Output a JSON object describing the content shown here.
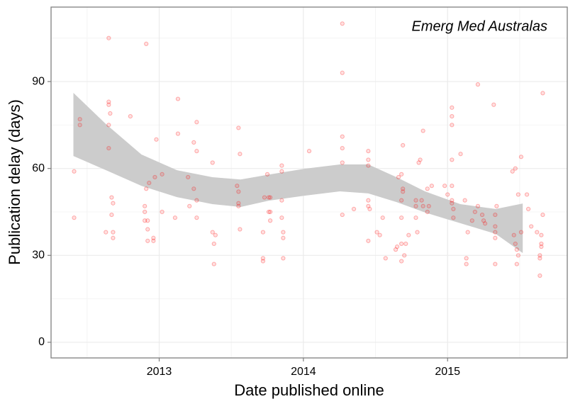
{
  "chart_data": {
    "type": "scatter",
    "annotation": "Emerg Med Australas",
    "xlabel": "Date published online",
    "ylabel": "Publication delay (days)",
    "xlim": [
      2012.25,
      2015.83
    ],
    "ylim": [
      -5.4,
      115.7
    ],
    "xticks": [
      2013,
      2014,
      2015
    ],
    "yticks": [
      0,
      30,
      60,
      90
    ],
    "grid": true,
    "color": "#ff0000",
    "x": [
      2012.41,
      2012.41,
      2012.45,
      2012.45,
      2012.65,
      2012.65,
      2012.65,
      2012.65,
      2012.65,
      2012.66,
      2012.63,
      2012.67,
      2012.68,
      2012.67,
      2012.68,
      2012.68,
      2012.8,
      2012.91,
      2012.91,
      2012.93,
      2012.9,
      2012.9,
      2012.9,
      2012.92,
      2012.92,
      2012.92,
      2012.96,
      2012.96,
      2012.97,
      2012.98,
      2013.02,
      2013.02,
      2013.13,
      2013.13,
      2013.11,
      2013.2,
      2013.21,
      2013.24,
      2013.26,
      2013.24,
      2013.26,
      2013.26,
      2013.26,
      2013.37,
      2013.37,
      2013.39,
      2013.38,
      2013.38,
      2013.55,
      2013.56,
      2013.54,
      2013.55,
      2013.55,
      2013.55,
      2013.56,
      2013.72,
      2013.72,
      2013.72,
      2013.75,
      2013.73,
      2013.76,
      2013.76,
      2013.77,
      2013.77,
      2013.77,
      2013.85,
      2013.85,
      2013.85,
      2013.85,
      2013.86,
      2013.86,
      2013.86,
      2014.04,
      2014.27,
      2014.27,
      2014.27,
      2014.27,
      2014.27,
      2014.27,
      2014.35,
      2014.45,
      2014.45,
      2014.45,
      2014.45,
      2014.45,
      2014.45,
      2014.46,
      2014.51,
      2014.53,
      2014.55,
      2014.57,
      2014.64,
      2014.65,
      2014.66,
      2014.68,
      2014.68,
      2014.68,
      2014.68,
      2014.69,
      2014.69,
      2014.69,
      2014.71,
      2014.7,
      2014.68,
      2014.73,
      2014.78,
      2014.78,
      2014.78,
      2014.79,
      2014.8,
      2014.81,
      2014.82,
      2014.83,
      2014.83,
      2014.86,
      2014.86,
      2014.87,
      2014.89,
      2014.98,
      2015.0,
      2015.03,
      2015.03,
      2015.03,
      2015.03,
      2015.03,
      2015.03,
      2015.03,
      2015.04,
      2015.04,
      2015.09,
      2015.12,
      2015.13,
      2015.13,
      2015.14,
      2015.17,
      2015.19,
      2015.21,
      2015.21,
      2015.24,
      2015.25,
      2015.26,
      2015.32,
      2015.33,
      2015.33,
      2015.33,
      2015.33,
      2015.33,
      2015.34,
      2015.45,
      2015.47,
      2015.46,
      2015.47,
      2015.48,
      2015.48,
      2015.49,
      2015.49,
      2015.51,
      2015.51,
      2015.55,
      2015.56,
      2015.58,
      2015.62,
      2015.64,
      2015.64,
      2015.64,
      2015.66,
      2015.66,
      2015.65,
      2015.65,
      2015.65
    ],
    "values": [
      59,
      43,
      77,
      75,
      105,
      83,
      82,
      75,
      67,
      79,
      38,
      50,
      48,
      44,
      38,
      36,
      78,
      103,
      53,
      55,
      47,
      45,
      42,
      42,
      39,
      35,
      36,
      35,
      57,
      70,
      58,
      45,
      84,
      72,
      43,
      57,
      47,
      53,
      76,
      69,
      66,
      49,
      43,
      62,
      38,
      37,
      34,
      27,
      74,
      65,
      54,
      52,
      48,
      47,
      39,
      38,
      29,
      28,
      58,
      50,
      50,
      45,
      45,
      42,
      50,
      61,
      59,
      49,
      43,
      38,
      36,
      29,
      66,
      110,
      93,
      71,
      67,
      62,
      44,
      46,
      66,
      63,
      61,
      49,
      47,
      35,
      46,
      38,
      37,
      43,
      29,
      32,
      33,
      57,
      58,
      49,
      43,
      34,
      68,
      52,
      53,
      34,
      30,
      28,
      37,
      49,
      47,
      43,
      38,
      62,
      63,
      49,
      73,
      47,
      45,
      53,
      47,
      54,
      54,
      51,
      81,
      78,
      75,
      63,
      54,
      49,
      48,
      46,
      43,
      65,
      49,
      29,
      27,
      38,
      42,
      45,
      89,
      47,
      44,
      42,
      41,
      82,
      44,
      40,
      38,
      36,
      27,
      47,
      59,
      60,
      37,
      34,
      32,
      27,
      51,
      30,
      38,
      64,
      51,
      46,
      40,
      38,
      23,
      30,
      29,
      86,
      44,
      37,
      34,
      33
    ],
    "ribbon": {
      "color": "#cccccc",
      "x": [
        2012.405,
        2012.631,
        2012.877,
        2013.123,
        2013.369,
        2013.565,
        2013.762,
        2014.007,
        2014.253,
        2014.45,
        2014.646,
        2014.843,
        2015.088,
        2015.334,
        2015.521
      ],
      "upper": [
        86.1,
        75.3,
        64.8,
        59.4,
        57.0,
        56.2,
        57.9,
        59.9,
        61.4,
        61.4,
        57.0,
        52.1,
        47.7,
        46.0,
        47.9
      ],
      "lower": [
        64.3,
        59.4,
        54.0,
        50.1,
        47.7,
        46.7,
        48.9,
        50.6,
        52.1,
        51.4,
        48.4,
        44.8,
        41.1,
        37.4,
        30.8
      ]
    }
  }
}
